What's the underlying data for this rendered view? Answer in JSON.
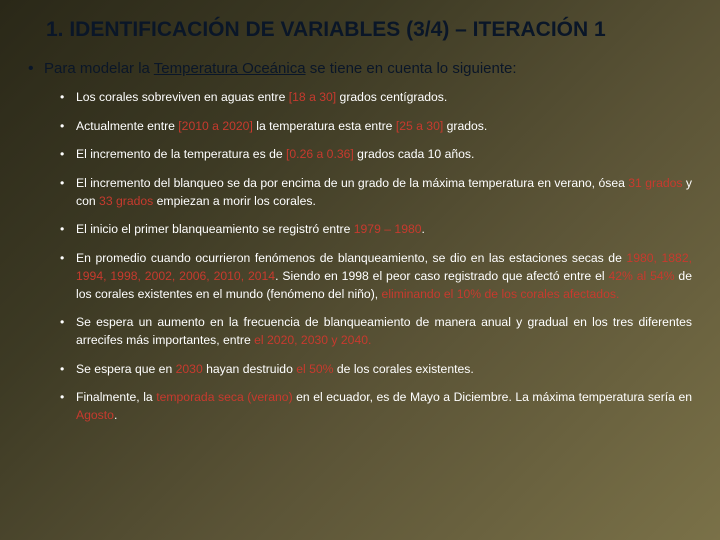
{
  "title": "1. IDENTIFICACIÓN DE VARIABLES (3/4) – ITERACIÓN 1",
  "intro_prefix": "Para modelar la ",
  "intro_underline": "Temperatura Oceánica",
  "intro_suffix": " se tiene en cuenta lo siguiente:",
  "items": {
    "i0_a": "Los corales sobreviven en aguas entre ",
    "i0_h": "[18 a 30]",
    "i0_b": " grados centígrados.",
    "i1_a": "Actualmente entre ",
    "i1_h1": "[2010 a 2020]",
    "i1_b": " la temperatura esta entre ",
    "i1_h2": "[25 a 30]",
    "i1_c": " grados.",
    "i2_a": "El incremento de la temperatura es de ",
    "i2_h": "[0.26 a 0.36]",
    "i2_b": " grados cada 10 años.",
    "i3_a": "El incremento del blanqueo se da por encima de un grado de la máxima temperatura en verano, ósea ",
    "i3_h1": "31 grados",
    "i3_b": " y con ",
    "i3_h2": "33 grados",
    "i3_c": " empiezan a morir los corales.",
    "i4_a": "El inicio el primer blanqueamiento se registró entre ",
    "i4_h": "1979 – 1980",
    "i4_b": ".",
    "i5_a": "En promedio cuando ocurrieron fenómenos de blanqueamiento, se dio en las estaciones secas de ",
    "i5_h1": "1980, 1882, 1994, 1998, 2002, 2006, 2010, 2014",
    "i5_b": ". Siendo en 1998 el peor caso registrado que afectó entre el ",
    "i5_h2": " 42% al 54%",
    "i5_c": " de los corales existentes en el mundo (fenómeno del niño), ",
    "i5_h3": "eliminando el 10% de los corales afectados.",
    "i6_a": "Se espera un aumento en la frecuencia de blanqueamiento de manera anual y gradual en  los tres diferentes arrecifes más importantes, entre ",
    "i6_h": "el 2020, 2030 y 2040.",
    "i7_a": "Se espera que en ",
    "i7_h1": "2030",
    "i7_b": " hayan destruido ",
    "i7_h2": "el 50%",
    "i7_c": " de los corales existentes.",
    "i8_a": "Finalmente, la ",
    "i8_h1": "temporada seca (verano)",
    "i8_b": " en el ecuador, es de Mayo a Diciembre. La máxima temperatura sería en ",
    "i8_h2": "Agosto",
    "i8_c": "."
  }
}
